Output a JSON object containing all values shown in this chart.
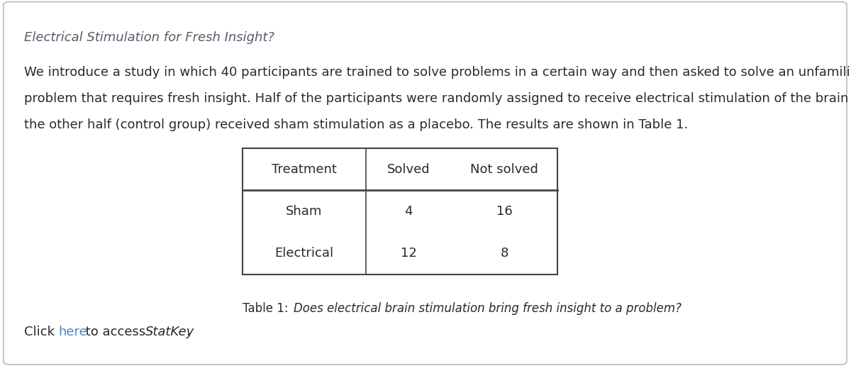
{
  "title": "Electrical Stimulation for Fresh Insight?",
  "title_color": "#5a5a6a",
  "title_fontsize": 13,
  "body_text_line1": "We introduce a study in which 40 participants are trained to solve problems in a certain way and then asked to solve an unfamiliar",
  "body_text_line2": "problem that requires fresh insight. Half of the participants were randomly assigned to receive electrical stimulation of the brain while",
  "body_text_line3": "the other half (control group) received sham stimulation as a placebo. The results are shown in Table 1.",
  "body_fontsize": 13,
  "body_color": "#2a2a2a",
  "table_headers": [
    "Treatment",
    "Solved",
    "Not solved"
  ],
  "table_rows": [
    [
      "Sham",
      "4",
      "16"
    ],
    [
      "Electrical",
      "12",
      "8"
    ]
  ],
  "table_fontsize": 13,
  "table_color": "#2a2a2a",
  "caption_prefix": "Table 1: ",
  "caption_italic": "Does electrical brain stimulation bring fresh insight to a problem?",
  "caption_fontsize": 12,
  "caption_color": "#2a2a2a",
  "footer_normal1": "Click ",
  "footer_link": "here",
  "footer_normal2": " to access ",
  "footer_italic": "StatKey",
  "footer_end": ".",
  "footer_fontsize": 13,
  "footer_link_color": "#4a86c8",
  "footer_color": "#2a2a2a",
  "background_color": "#ffffff",
  "border_color": "#bbbbbb",
  "table_line_color": "#444444"
}
